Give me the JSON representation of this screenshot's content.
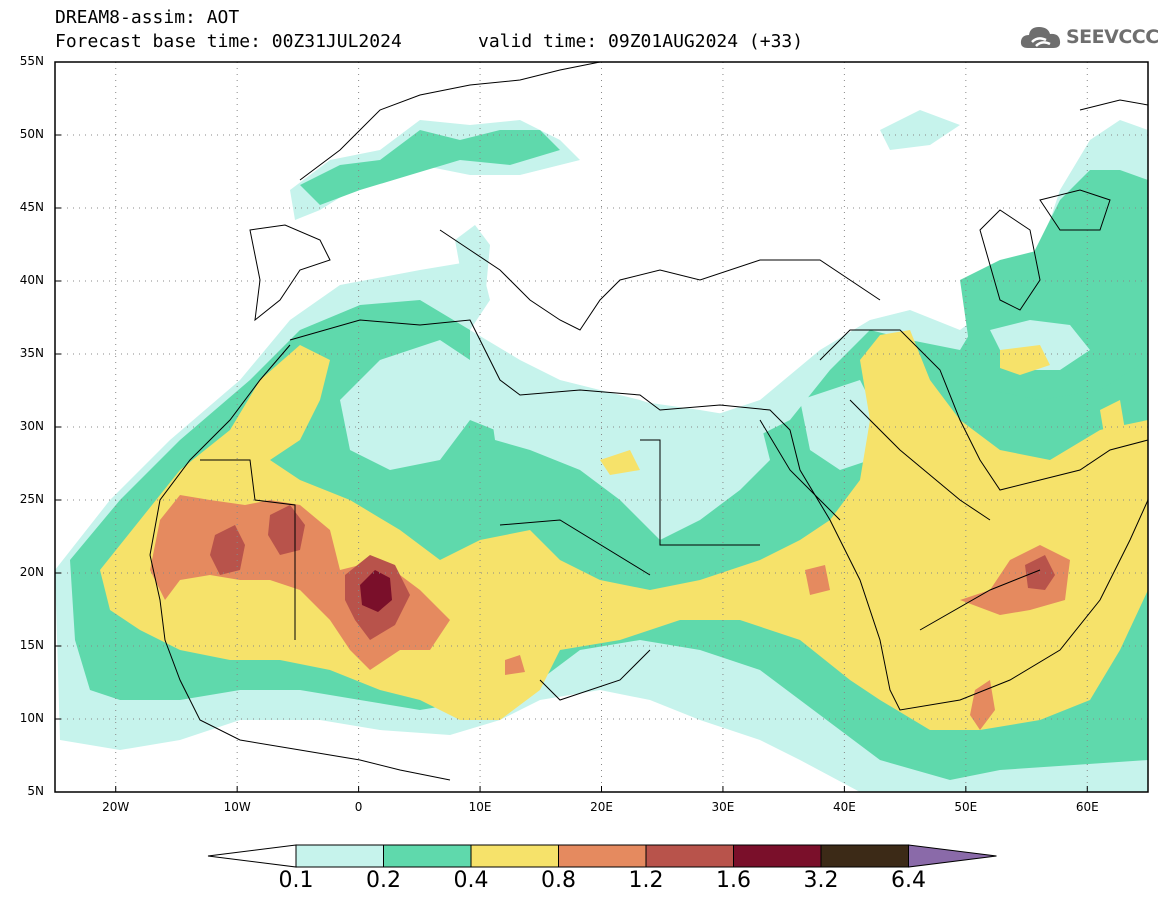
{
  "header": {
    "title": "DREAM8-assim: AOT",
    "base_time": "Forecast base time: 00Z31JUL2024",
    "valid_time": "valid time: 09Z01AUG2024 (+33)"
  },
  "logo": {
    "text": "SEEVCCC",
    "icon": "cloud-icon"
  },
  "map": {
    "projection": "lat-lon",
    "lon_range": [
      -25,
      65
    ],
    "lat_range": [
      5,
      55
    ],
    "lat_labels": [
      "55N",
      "50N",
      "45N",
      "40N",
      "35N",
      "30N",
      "25N",
      "20N",
      "15N",
      "10N",
      "5N"
    ],
    "lon_labels": [
      "20W",
      "10W",
      "0",
      "10E",
      "20E",
      "30E",
      "40E",
      "50E",
      "60E"
    ],
    "grid": "dotted"
  },
  "colorbar": {
    "labels": [
      "0.1",
      "0.2",
      "0.4",
      "0.8",
      "1.2",
      "1.6",
      "3.2",
      "6.4"
    ],
    "colors": [
      "#ffffff",
      "#c6f3ec",
      "#5fd9ac",
      "#f6e26a",
      "#e58a5f",
      "#b8534b",
      "#7a0f2a",
      "#3c2a17",
      "#8a6aa9"
    ]
  }
}
